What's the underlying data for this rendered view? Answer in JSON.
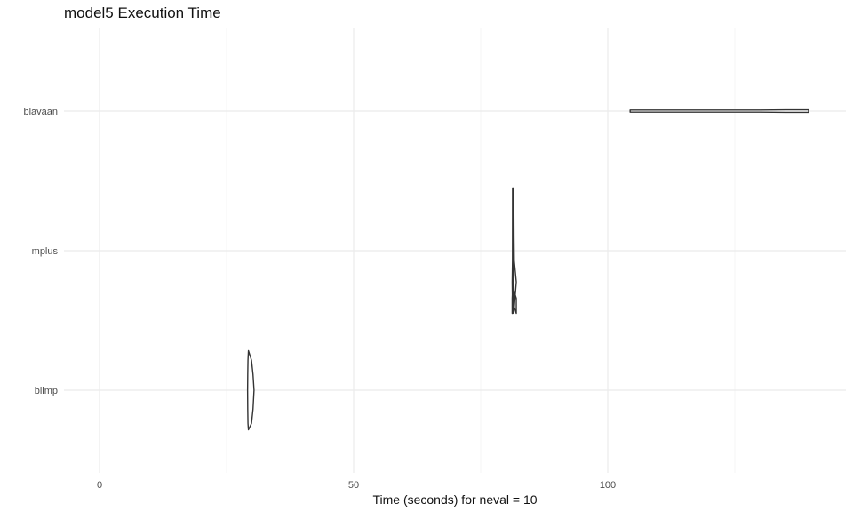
{
  "chart_data": {
    "type": "violin",
    "title": "model5 Execution Time",
    "xlabel": "Time (seconds) for neval = 10",
    "ylabel": "",
    "xlim": [
      -3.5,
      146.5
    ],
    "xticks": [
      0,
      50,
      100
    ],
    "xtick_labels": [
      "0",
      "50",
      "100"
    ],
    "x_minor_ticks": [
      25,
      75,
      125
    ],
    "grid": true,
    "categories": [
      "blavaan",
      "mplus",
      "blimp"
    ],
    "series": [
      {
        "category": "blavaan",
        "min": 104.4,
        "max": 139.5,
        "profile": [
          [
            104.4,
            0.02
          ],
          [
            110,
            0.03
          ],
          [
            120,
            0.02
          ],
          [
            125,
            0.01
          ],
          [
            130,
            0.06
          ],
          [
            135,
            0.09
          ],
          [
            139.5,
            0.09
          ]
        ]
      },
      {
        "category": "mplus",
        "min": 81.3,
        "max": 82.0,
        "profile": [
          [
            81.3,
            0.0
          ],
          [
            81.32,
            0.16
          ],
          [
            81.38,
            0.3
          ],
          [
            81.4,
            0.5
          ],
          [
            81.45,
            0.72
          ],
          [
            81.42,
            0.9
          ],
          [
            81.5,
            1.0
          ],
          [
            81.52,
            0.98
          ],
          [
            81.55,
            0.82
          ],
          [
            82.0,
            0.88
          ],
          [
            82.0,
            1.0
          ],
          [
            81.6,
            0.95
          ],
          [
            82.0,
            0.75
          ],
          [
            81.6,
            0.58
          ],
          [
            81.55,
            0.4
          ],
          [
            81.52,
            0.2
          ],
          [
            81.5,
            0.0
          ]
        ]
      },
      {
        "category": "blimp",
        "min": 29.3,
        "max": 31.0,
        "profile": [
          [
            29.3,
            0.0
          ],
          [
            29.9,
            0.12
          ],
          [
            30.2,
            0.3
          ],
          [
            30.4,
            0.5
          ],
          [
            30.2,
            0.74
          ],
          [
            29.9,
            0.92
          ],
          [
            29.3,
            1.0
          ]
        ]
      }
    ]
  }
}
